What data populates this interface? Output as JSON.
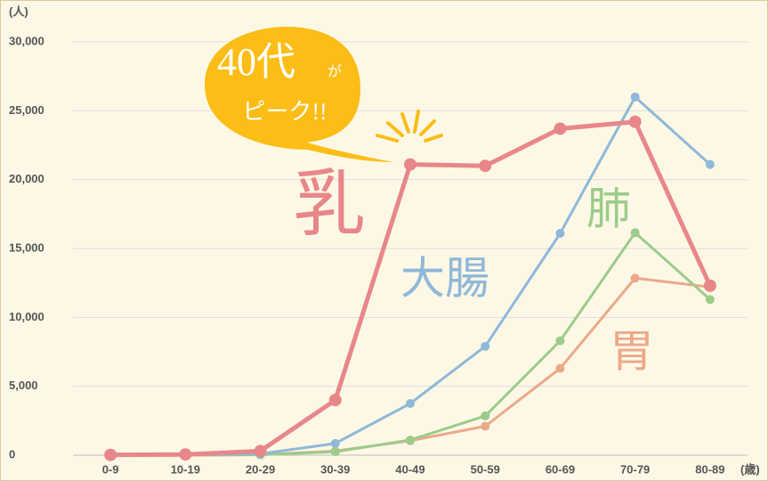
{
  "chart_data": {
    "type": "line",
    "categories": [
      "0-9",
      "10-19",
      "20-29",
      "30-39",
      "40-49",
      "50-59",
      "60-69",
      "70-79",
      "80-89"
    ],
    "y_unit": "(人)",
    "x_unit": "(歳)",
    "ylim": [
      0,
      30000
    ],
    "yticks": [
      0,
      {
        "value": 5000,
        "label": "5,000"
      },
      {
        "value": 10000,
        "label": "10,000"
      },
      {
        "value": 15000,
        "label": "15,000"
      },
      {
        "value": 20000,
        "label": "20,000"
      },
      {
        "value": 25000,
        "label": "25,000"
      },
      {
        "value": 30000,
        "label": "30,000"
      }
    ],
    "grid": true,
    "series": [
      {
        "name": "乳",
        "color": "#e8878a",
        "values": [
          20,
          50,
          300,
          4000,
          21100,
          21000,
          23700,
          24200,
          12300
        ]
      },
      {
        "name": "大腸",
        "color": "#8fb8d8",
        "values": [
          0,
          20,
          100,
          850,
          3750,
          7900,
          16100,
          26000,
          21100
        ]
      },
      {
        "name": "肺",
        "color": "#9ccb8a",
        "values": [
          0,
          0,
          30,
          250,
          1100,
          2850,
          8300,
          16150,
          11300
        ]
      },
      {
        "name": "胃",
        "color": "#eba98a",
        "values": [
          0,
          0,
          30,
          300,
          1050,
          2100,
          6300,
          12850,
          12200
        ]
      }
    ],
    "annotation": [
      "40代",
      "が",
      "ピーク!!"
    ]
  }
}
